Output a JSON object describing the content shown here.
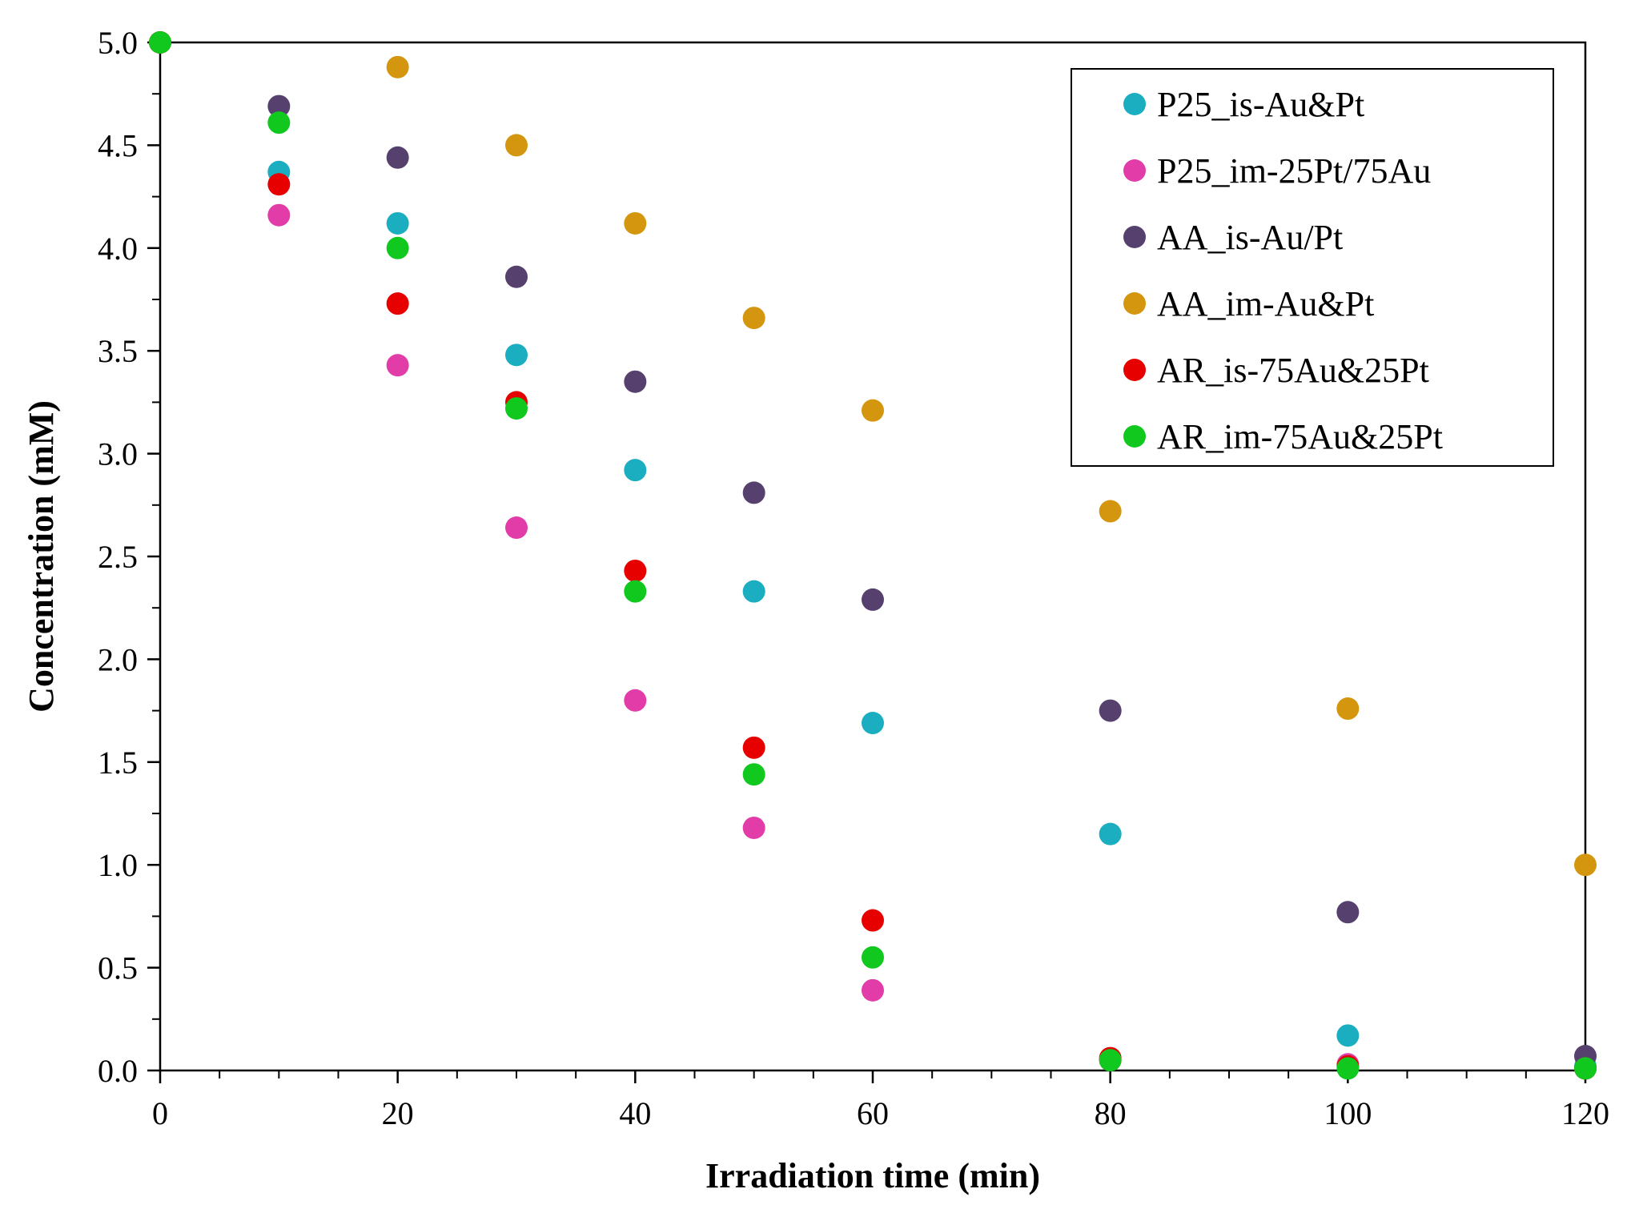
{
  "chart_data": {
    "type": "scatter",
    "title": "",
    "xlabel": "Irradiation time (min)",
    "ylabel": "Concentration (mM)",
    "xlim": [
      0,
      120
    ],
    "ylim": [
      0,
      5
    ],
    "xticks": [
      0,
      20,
      40,
      60,
      80,
      100,
      120
    ],
    "xtick_labels": [
      "0",
      "20",
      "40",
      "60",
      "80",
      "100",
      "120"
    ],
    "yticks": [
      0,
      0.5,
      1,
      1.5,
      2,
      2.5,
      3,
      3.5,
      4,
      4.5,
      5
    ],
    "ytick_labels": [
      "0.0",
      "0.5",
      "1.0",
      "1.5",
      "2.0",
      "2.5",
      "3.0",
      "3.5",
      "4.0",
      "4.5",
      "5.0"
    ],
    "grid": false,
    "legend_position": "top-right",
    "series": [
      {
        "name": "P25_is-Au&Pt",
        "color": "#1aaec0",
        "points": [
          [
            0,
            5.0
          ],
          [
            10,
            4.37
          ],
          [
            20,
            4.12
          ],
          [
            30,
            3.48
          ],
          [
            40,
            2.92
          ],
          [
            50,
            2.33
          ],
          [
            60,
            1.69
          ],
          [
            80,
            1.15
          ],
          [
            100,
            0.17
          ],
          [
            120,
            0.02
          ]
        ]
      },
      {
        "name": "P25_im-25Pt/75Au",
        "color": "#e23ca8",
        "points": [
          [
            0,
            5.0
          ],
          [
            10,
            4.16
          ],
          [
            20,
            3.43
          ],
          [
            30,
            2.64
          ],
          [
            40,
            1.8
          ],
          [
            50,
            1.18
          ],
          [
            60,
            0.39
          ],
          [
            80,
            0.05
          ],
          [
            100,
            0.03
          ],
          [
            120,
            0.01
          ]
        ]
      },
      {
        "name": "AA_is-Au/Pt",
        "color": "#55406e",
        "points": [
          [
            0,
            5.0
          ],
          [
            10,
            4.69
          ],
          [
            20,
            4.44
          ],
          [
            30,
            3.86
          ],
          [
            40,
            3.35
          ],
          [
            50,
            2.81
          ],
          [
            60,
            2.29
          ],
          [
            80,
            1.75
          ],
          [
            100,
            0.77
          ],
          [
            120,
            0.07
          ]
        ]
      },
      {
        "name": "AA_im-Au&Pt",
        "color": "#d4960e",
        "points": [
          [
            0,
            5.0
          ],
          [
            20,
            4.88
          ],
          [
            30,
            4.5
          ],
          [
            40,
            4.12
          ],
          [
            50,
            3.66
          ],
          [
            60,
            3.21
          ],
          [
            80,
            2.72
          ],
          [
            100,
            1.76
          ],
          [
            120,
            1.0
          ]
        ]
      },
      {
        "name": "AR_is-75Au&25Pt",
        "color": "#e60000",
        "points": [
          [
            0,
            5.0
          ],
          [
            10,
            4.31
          ],
          [
            20,
            3.73
          ],
          [
            30,
            3.25
          ],
          [
            40,
            2.43
          ],
          [
            50,
            1.57
          ],
          [
            60,
            0.73
          ],
          [
            80,
            0.06
          ],
          [
            100,
            0.02
          ],
          [
            120,
            0.01
          ]
        ]
      },
      {
        "name": "AR_im-75Au&25Pt",
        "color": "#10c81e",
        "points": [
          [
            0,
            5.0
          ],
          [
            10,
            4.61
          ],
          [
            20,
            4.0
          ],
          [
            30,
            3.22
          ],
          [
            40,
            2.33
          ],
          [
            50,
            1.44
          ],
          [
            60,
            0.55
          ],
          [
            80,
            0.05
          ],
          [
            100,
            0.01
          ],
          [
            120,
            0.01
          ]
        ]
      }
    ]
  }
}
